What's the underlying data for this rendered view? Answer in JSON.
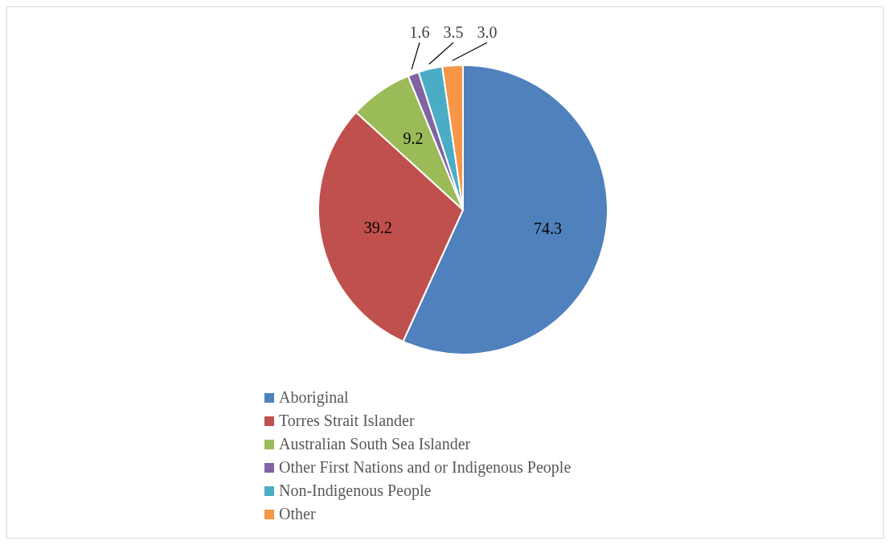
{
  "chart_data": {
    "type": "pie",
    "categories": [
      "Aboriginal",
      "Torres Strait Islander",
      "Australian South Sea Islander",
      "Other First Nations and or Indigenous People",
      "Non-Indigenous People",
      "Other"
    ],
    "values": [
      74.3,
      39.2,
      9.2,
      1.6,
      3.5,
      3.0
    ],
    "colors": [
      "#4f81bd",
      "#c0504d",
      "#9bbb59",
      "#8064a2",
      "#4bacc6",
      "#f79646"
    ],
    "value_labels": [
      "74.3",
      "39.2",
      "9.2",
      "1.6",
      "3.5",
      "3.0"
    ],
    "legend": "bottom"
  }
}
